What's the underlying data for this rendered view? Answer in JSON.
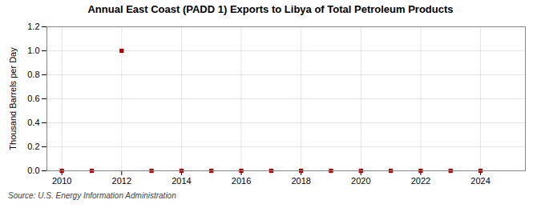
{
  "chart_data": {
    "type": "scatter",
    "title": "Annual East Coast (PADD 1) Exports to Libya of Total Petroleum Products",
    "ylabel": "Thousand Barrels per Day",
    "source": "Source: U.S. Energy Information Administration",
    "x": [
      2010,
      2011,
      2012,
      2013,
      2014,
      2015,
      2016,
      2017,
      2018,
      2019,
      2020,
      2021,
      2022,
      2023,
      2024
    ],
    "values": [
      0,
      0,
      1.0,
      0,
      0,
      0,
      0,
      0,
      0,
      0,
      0,
      0,
      0,
      0,
      0
    ],
    "color": "#aa0000",
    "marker": "square",
    "xlim": [
      2009.5,
      2025.5
    ],
    "xticks": [
      2010,
      2012,
      2014,
      2016,
      2018,
      2020,
      2022,
      2024
    ],
    "ylim": [
      0.0,
      1.2
    ],
    "yticks": [
      {
        "value": 0.0,
        "label": "0.0"
      },
      0.2,
      0.4,
      0.6,
      0.8,
      {
        "value": 1.0,
        "label": "1.0"
      },
      1.2
    ],
    "grid": true
  }
}
